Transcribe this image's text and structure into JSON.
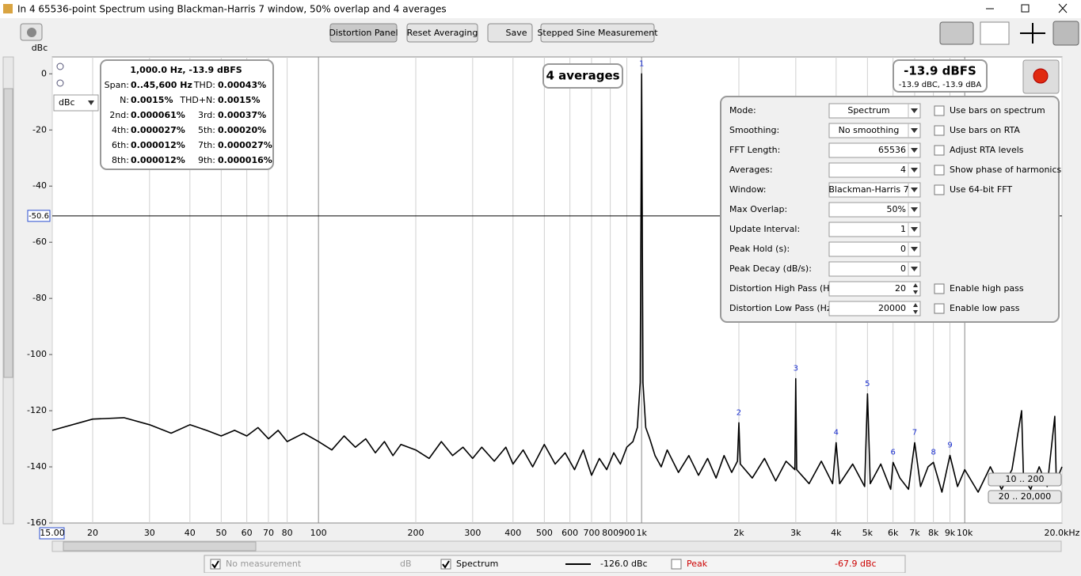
{
  "window": {
    "title": "In 4 65536-point Spectrum using Blackman-Harris 7 window, 50% overlap and 4 averages"
  },
  "toolbar": {
    "buttons": [
      "Distortion Panel",
      "Reset Averaging",
      "Save",
      "Stepped Sine Measurement"
    ]
  },
  "chart_data": {
    "type": "line",
    "y_label": "dBc",
    "y_unit_select": "dBc",
    "x_log": true,
    "grid": true,
    "xlim": [
      15,
      20000
    ],
    "ylim": [
      -160,
      6
    ],
    "xticks": [
      {
        "value": 15,
        "label": "15.00"
      },
      20,
      30,
      40,
      50,
      60,
      70,
      80,
      100,
      200,
      300,
      400,
      500,
      600,
      700,
      800,
      900,
      {
        "value": 1000,
        "label": "1k"
      },
      {
        "value": 2000,
        "label": "2k"
      },
      {
        "value": 3000,
        "label": "3k"
      },
      {
        "value": 4000,
        "label": "4k"
      },
      {
        "value": 5000,
        "label": "5k"
      },
      {
        "value": 6000,
        "label": "6k"
      },
      {
        "value": 7000,
        "label": "7k"
      },
      {
        "value": 8000,
        "label": "8k"
      },
      {
        "value": 9000,
        "label": "9k"
      },
      {
        "value": 10000,
        "label": "10k"
      },
      {
        "value": 20000,
        "label": "20.0kHz"
      }
    ],
    "yticks": [
      0,
      -20,
      -40,
      -60,
      -80,
      -100,
      -120,
      -140,
      -160
    ],
    "cursor_level": -50.6,
    "series": [
      {
        "name": "Spectrum",
        "color": "#000000",
        "x": [
          15,
          20,
          25,
          30,
          35,
          40,
          45,
          50,
          55,
          60,
          65,
          70,
          75,
          80,
          90,
          100,
          110,
          120,
          130,
          140,
          150,
          160,
          170,
          180,
          200,
          220,
          240,
          260,
          280,
          300,
          320,
          350,
          380,
          400,
          430,
          460,
          500,
          540,
          580,
          620,
          660,
          700,
          740,
          780,
          820,
          860,
          900,
          940,
          970,
          990,
          1000,
          1010,
          1030,
          1060,
          1100,
          1150,
          1200,
          1300,
          1400,
          1500,
          1600,
          1700,
          1800,
          1900,
          1980,
          2000,
          2020,
          2200,
          2400,
          2600,
          2800,
          2980,
          3000,
          3020,
          3300,
          3600,
          3900,
          4000,
          4100,
          4500,
          4900,
          5000,
          5100,
          5500,
          5900,
          6000,
          6300,
          6700,
          7000,
          7300,
          7700,
          8000,
          8500,
          9000,
          9500,
          10000,
          11000,
          12000,
          13000,
          14000,
          15000,
          15200,
          16000,
          17000,
          18000,
          19000,
          19200,
          20000
        ],
        "values": [
          -127,
          -123,
          -122.5,
          -125,
          -128,
          -125,
          -127,
          -129,
          -127,
          -129,
          -126,
          -130,
          -127,
          -131,
          -128,
          -131,
          -134,
          -129,
          -133,
          -130,
          -135,
          -131,
          -136,
          -132,
          -134,
          -137,
          -131,
          -136,
          -133,
          -137,
          -133,
          -138,
          -133,
          -139,
          -134,
          -140,
          -132,
          -139,
          -135,
          -141,
          -134,
          -143,
          -137,
          -141,
          -135,
          -139,
          -133,
          -131,
          -126,
          -110,
          0,
          -110,
          -126,
          -130,
          -136,
          -140,
          -134,
          -142,
          -136,
          -143,
          -137,
          -144,
          -136,
          -142,
          -138,
          -124.3,
          -139,
          -144,
          -137,
          -145,
          -138,
          -141,
          -108.6,
          -141,
          -146,
          -138,
          -146,
          -131.4,
          -146,
          -139,
          -147,
          -114,
          -146,
          -139,
          -148,
          -138.4,
          -144,
          -148,
          -131.4,
          -147,
          -140,
          -138.4,
          -149,
          -135.9,
          -147,
          -141,
          -149,
          -140,
          -148,
          -141,
          -120,
          -144,
          -148,
          -140,
          -147,
          -122,
          -145,
          -140
        ]
      }
    ],
    "harmonics": {
      "labels": [
        "1",
        "2",
        "3",
        "4",
        "5",
        "6",
        "7",
        "8",
        "9"
      ],
      "x": [
        1000,
        2000,
        3000,
        4000,
        5000,
        6000,
        7000,
        8000,
        9000
      ],
      "values": [
        0,
        -124.3,
        -108.6,
        -131.4,
        -114,
        -138.4,
        -131.4,
        -138.4,
        -135.9
      ]
    },
    "averages_badge": "4 averages",
    "level_meter": {
      "main": "-13.9 dBFS",
      "sub": "-13.9 dBC, -13.9 dBA"
    },
    "range_buttons": [
      "10 .. 200",
      "20 .. 20,000"
    ]
  },
  "distortion_info": {
    "header": "1,000.0 Hz, -13.9 dBFS",
    "rows": [
      [
        [
          "Span:",
          "0..45,600 Hz"
        ],
        [
          "THD:",
          "0.00043%"
        ]
      ],
      [
        [
          "N:",
          "0.0015%"
        ],
        [
          "THD+N:",
          "0.0015%"
        ]
      ],
      [
        [
          "2nd:",
          "0.000061%"
        ],
        [
          "3rd:",
          "0.00037%"
        ]
      ],
      [
        [
          "4th:",
          "0.000027%"
        ],
        [
          "5th:",
          "0.00020%"
        ]
      ],
      [
        [
          "6th:",
          "0.000012%"
        ],
        [
          "7th:",
          "0.000027%"
        ]
      ],
      [
        [
          "8th:",
          "0.000012%"
        ],
        [
          "9th:",
          "0.000016%"
        ]
      ]
    ]
  },
  "settings": {
    "rows": [
      {
        "label": "Mode:",
        "value": "Spectrum",
        "option": "Use bars on spectrum"
      },
      {
        "label": "Smoothing:",
        "value": "No  smoothing",
        "option": "Use bars on RTA"
      },
      {
        "label": "FFT Length:",
        "value": "65536",
        "option": "Adjust RTA levels"
      },
      {
        "label": "Averages:",
        "value": "4",
        "option": "Show phase of harmonics"
      },
      {
        "label": "Window:",
        "value": "Blackman-Harris 7",
        "option": "Use 64-bit FFT"
      },
      {
        "label": "Max Overlap:",
        "value": "50%"
      },
      {
        "label": "Update Interval:",
        "value": "1"
      },
      {
        "label": "Peak Hold (s):",
        "value": "0"
      },
      {
        "label": "Peak Decay (dB/s):",
        "value": "0"
      },
      {
        "label": "Distortion High Pass (Hz):",
        "value": "20",
        "option": "Enable high pass",
        "spinner": true
      },
      {
        "label": "Distortion Low Pass (Hz):",
        "value": "20000",
        "option": "Enable low pass",
        "spinner": true
      }
    ]
  },
  "legend_bar": {
    "inactive": {
      "label": "No measurement",
      "unit": "dB"
    },
    "spectrum": {
      "value": "-126.0 dBc",
      "checked": true
    },
    "peak": {
      "label": "Peak",
      "value": "-67.9 dBc",
      "checked": false
    }
  }
}
